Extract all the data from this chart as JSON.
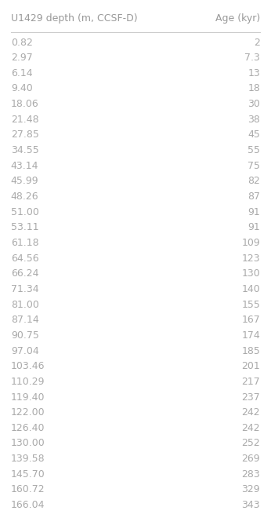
{
  "title": "U1429 depth (m, CCSF-D)",
  "col2_header": "Age (kyr)",
  "rows": [
    [
      "0.82",
      "2"
    ],
    [
      "2.97",
      "7.3"
    ],
    [
      "6.14",
      "13"
    ],
    [
      "9.40",
      "18"
    ],
    [
      "18.06",
      "30"
    ],
    [
      "21.48",
      "38"
    ],
    [
      "27.85",
      "45"
    ],
    [
      "34.55",
      "55"
    ],
    [
      "43.14",
      "75"
    ],
    [
      "45.99",
      "82"
    ],
    [
      "48.26",
      "87"
    ],
    [
      "51.00",
      "91"
    ],
    [
      "53.11",
      "91"
    ],
    [
      "61.18",
      "109"
    ],
    [
      "64.56",
      "123"
    ],
    [
      "66.24",
      "130"
    ],
    [
      "71.34",
      "140"
    ],
    [
      "81.00",
      "155"
    ],
    [
      "87.14",
      "167"
    ],
    [
      "90.75",
      "174"
    ],
    [
      "97.04",
      "185"
    ],
    [
      "103.46",
      "201"
    ],
    [
      "110.29",
      "217"
    ],
    [
      "119.40",
      "237"
    ],
    [
      "122.00",
      "242"
    ],
    [
      "126.40",
      "242"
    ],
    [
      "130.00",
      "252"
    ],
    [
      "139.58",
      "269"
    ],
    [
      "145.70",
      "283"
    ],
    [
      "160.72",
      "329"
    ],
    [
      "166.04",
      "343"
    ]
  ],
  "text_color": "#aaaaaa",
  "header_color": "#999999",
  "bg_color": "#ffffff",
  "header_fontsize": 9,
  "row_fontsize": 9,
  "line_color": "#cccccc"
}
